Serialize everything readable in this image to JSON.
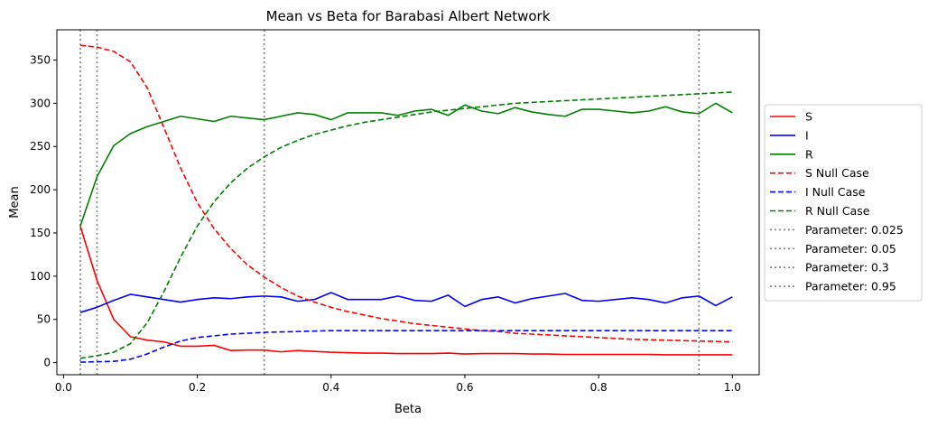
{
  "chart_data": {
    "type": "line",
    "title": "Mean vs Beta for Barabasi Albert Network",
    "xlabel": "Beta",
    "ylabel": "Mean",
    "xlim": [
      -0.01,
      1.04
    ],
    "ylim": [
      -14,
      385
    ],
    "xticks": [
      0.0,
      0.2,
      0.4,
      0.6,
      0.8,
      1.0
    ],
    "xtick_labels": [
      "0.0",
      "0.2",
      "0.4",
      "0.6",
      "0.8",
      "1.0"
    ],
    "yticks": [
      0,
      50,
      100,
      150,
      200,
      250,
      300,
      350
    ],
    "ytick_labels": [
      "0",
      "50",
      "100",
      "150",
      "200",
      "250",
      "300",
      "350"
    ],
    "grid": false,
    "legend_position": "right-outside",
    "series": [
      {
        "name": "S",
        "color": "#ff0000",
        "style": "solid",
        "x": [
          0.025,
          0.05,
          0.075,
          0.1,
          0.125,
          0.15,
          0.175,
          0.2,
          0.225,
          0.25,
          0.275,
          0.3,
          0.325,
          0.35,
          0.375,
          0.4,
          0.425,
          0.45,
          0.475,
          0.5,
          0.525,
          0.55,
          0.575,
          0.6,
          0.625,
          0.65,
          0.675,
          0.7,
          0.725,
          0.75,
          0.775,
          0.8,
          0.825,
          0.85,
          0.875,
          0.9,
          0.925,
          0.95,
          0.975,
          1.0
        ],
        "y": [
          158,
          95,
          50,
          30,
          26,
          24,
          19,
          19,
          20,
          14,
          14.5,
          14.5,
          12.5,
          14,
          13,
          12,
          11.5,
          11,
          11,
          10.5,
          10.5,
          10.5,
          11,
          10,
          10.5,
          10.5,
          10.5,
          10,
          10,
          9.5,
          9.5,
          9.5,
          9.5,
          9.5,
          9.5,
          9,
          9,
          9,
          9,
          9
        ]
      },
      {
        "name": "I",
        "color": "#0000ff",
        "style": "solid",
        "x": [
          0.025,
          0.05,
          0.075,
          0.1,
          0.125,
          0.15,
          0.175,
          0.2,
          0.225,
          0.25,
          0.275,
          0.3,
          0.325,
          0.35,
          0.375,
          0.4,
          0.425,
          0.45,
          0.475,
          0.5,
          0.525,
          0.55,
          0.575,
          0.6,
          0.625,
          0.65,
          0.675,
          0.7,
          0.725,
          0.75,
          0.775,
          0.8,
          0.825,
          0.85,
          0.875,
          0.9,
          0.925,
          0.95,
          0.975,
          1.0
        ],
        "y": [
          58,
          64,
          72,
          79,
          76,
          73,
          70,
          73,
          75,
          74,
          76,
          77,
          76,
          71,
          73,
          81,
          73,
          73,
          73,
          77,
          72,
          71,
          78,
          65,
          73,
          76,
          69,
          74,
          77,
          80,
          72,
          71,
          73,
          75,
          73,
          69,
          75,
          77,
          66,
          76
        ]
      },
      {
        "name": "R",
        "color": "#008000",
        "style": "solid",
        "x": [
          0.025,
          0.05,
          0.075,
          0.1,
          0.125,
          0.15,
          0.175,
          0.2,
          0.225,
          0.25,
          0.275,
          0.3,
          0.325,
          0.35,
          0.375,
          0.4,
          0.425,
          0.45,
          0.475,
          0.5,
          0.525,
          0.55,
          0.575,
          0.6,
          0.625,
          0.65,
          0.675,
          0.7,
          0.725,
          0.75,
          0.775,
          0.8,
          0.825,
          0.85,
          0.875,
          0.9,
          0.925,
          0.95,
          0.975,
          1.0
        ],
        "y": [
          158,
          215,
          251,
          265,
          273,
          279,
          285,
          282,
          279,
          285,
          283,
          281,
          285,
          289,
          287,
          281,
          289,
          289,
          289,
          286,
          291,
          293,
          286,
          298,
          291,
          288,
          295,
          290,
          287,
          285,
          293,
          293,
          291,
          289,
          291,
          296,
          290,
          288,
          300,
          289
        ]
      },
      {
        "name": "S Null Case",
        "color": "#ff0000",
        "style": "dashed",
        "x": [
          0.025,
          0.05,
          0.075,
          0.1,
          0.125,
          0.15,
          0.175,
          0.2,
          0.225,
          0.25,
          0.275,
          0.3,
          0.325,
          0.35,
          0.375,
          0.4,
          0.425,
          0.45,
          0.475,
          0.5,
          0.525,
          0.55,
          0.575,
          0.6,
          0.625,
          0.65,
          0.675,
          0.7,
          0.725,
          0.75,
          0.775,
          0.8,
          0.825,
          0.85,
          0.875,
          0.9,
          0.925,
          0.95,
          0.975,
          1.0
        ],
        "y": [
          367,
          365,
          360,
          348,
          318,
          272,
          225,
          185,
          155,
          132,
          113,
          99,
          87,
          77,
          70,
          64,
          59,
          55,
          51,
          48,
          45,
          43,
          41,
          39,
          37,
          36,
          34,
          33,
          32,
          31,
          30,
          29,
          28,
          27,
          26.5,
          26,
          25.5,
          25,
          24.5,
          24
        ]
      },
      {
        "name": "I Null Case",
        "color": "#0000ff",
        "style": "dashed",
        "x": [
          0.025,
          0.05,
          0.075,
          0.1,
          0.125,
          0.15,
          0.175,
          0.2,
          0.225,
          0.25,
          0.275,
          0.3,
          0.325,
          0.35,
          0.375,
          0.4,
          0.425,
          0.45,
          0.475,
          0.5,
          0.525,
          0.55,
          0.575,
          0.6,
          0.625,
          0.65,
          0.675,
          0.7,
          0.725,
          0.75,
          0.775,
          0.8,
          0.825,
          0.85,
          0.875,
          0.9,
          0.925,
          0.95,
          0.975,
          1.0
        ],
        "y": [
          0.5,
          1,
          1.5,
          4,
          10,
          18,
          25,
          29,
          31,
          33,
          34,
          35,
          35.5,
          36,
          36.5,
          37,
          37,
          37,
          37,
          37,
          37,
          37,
          37,
          37,
          37,
          37,
          37,
          37,
          37,
          37,
          37,
          37,
          37,
          37,
          37,
          37,
          37,
          37,
          37,
          37
        ]
      },
      {
        "name": "R Null Case",
        "color": "#008000",
        "style": "dashed",
        "x": [
          0.025,
          0.05,
          0.075,
          0.1,
          0.125,
          0.15,
          0.175,
          0.2,
          0.225,
          0.25,
          0.275,
          0.3,
          0.325,
          0.35,
          0.375,
          0.4,
          0.425,
          0.45,
          0.475,
          0.5,
          0.525,
          0.55,
          0.575,
          0.6,
          0.625,
          0.65,
          0.675,
          0.7,
          0.725,
          0.75,
          0.775,
          0.8,
          0.825,
          0.85,
          0.875,
          0.9,
          0.925,
          0.95,
          0.975,
          1.0
        ],
        "y": [
          5,
          8,
          12,
          22,
          46,
          82,
          122,
          158,
          186,
          208,
          225,
          238,
          249,
          257,
          264,
          269,
          274,
          278,
          281,
          284,
          287,
          290,
          292,
          294,
          296,
          298,
          300,
          301,
          302,
          303,
          304,
          305,
          306,
          307,
          308,
          309,
          310,
          311,
          312,
          313
        ]
      }
    ],
    "vlines": [
      {
        "name": "Parameter: 0.025",
        "x": 0.025,
        "color": "#808080",
        "style": "dotted"
      },
      {
        "name": "Parameter: 0.05",
        "x": 0.05,
        "color": "#808080",
        "style": "dotted"
      },
      {
        "name": "Parameter: 0.3",
        "x": 0.3,
        "color": "#808080",
        "style": "dotted"
      },
      {
        "name": "Parameter: 0.95",
        "x": 0.95,
        "color": "#808080",
        "style": "dotted"
      }
    ]
  }
}
